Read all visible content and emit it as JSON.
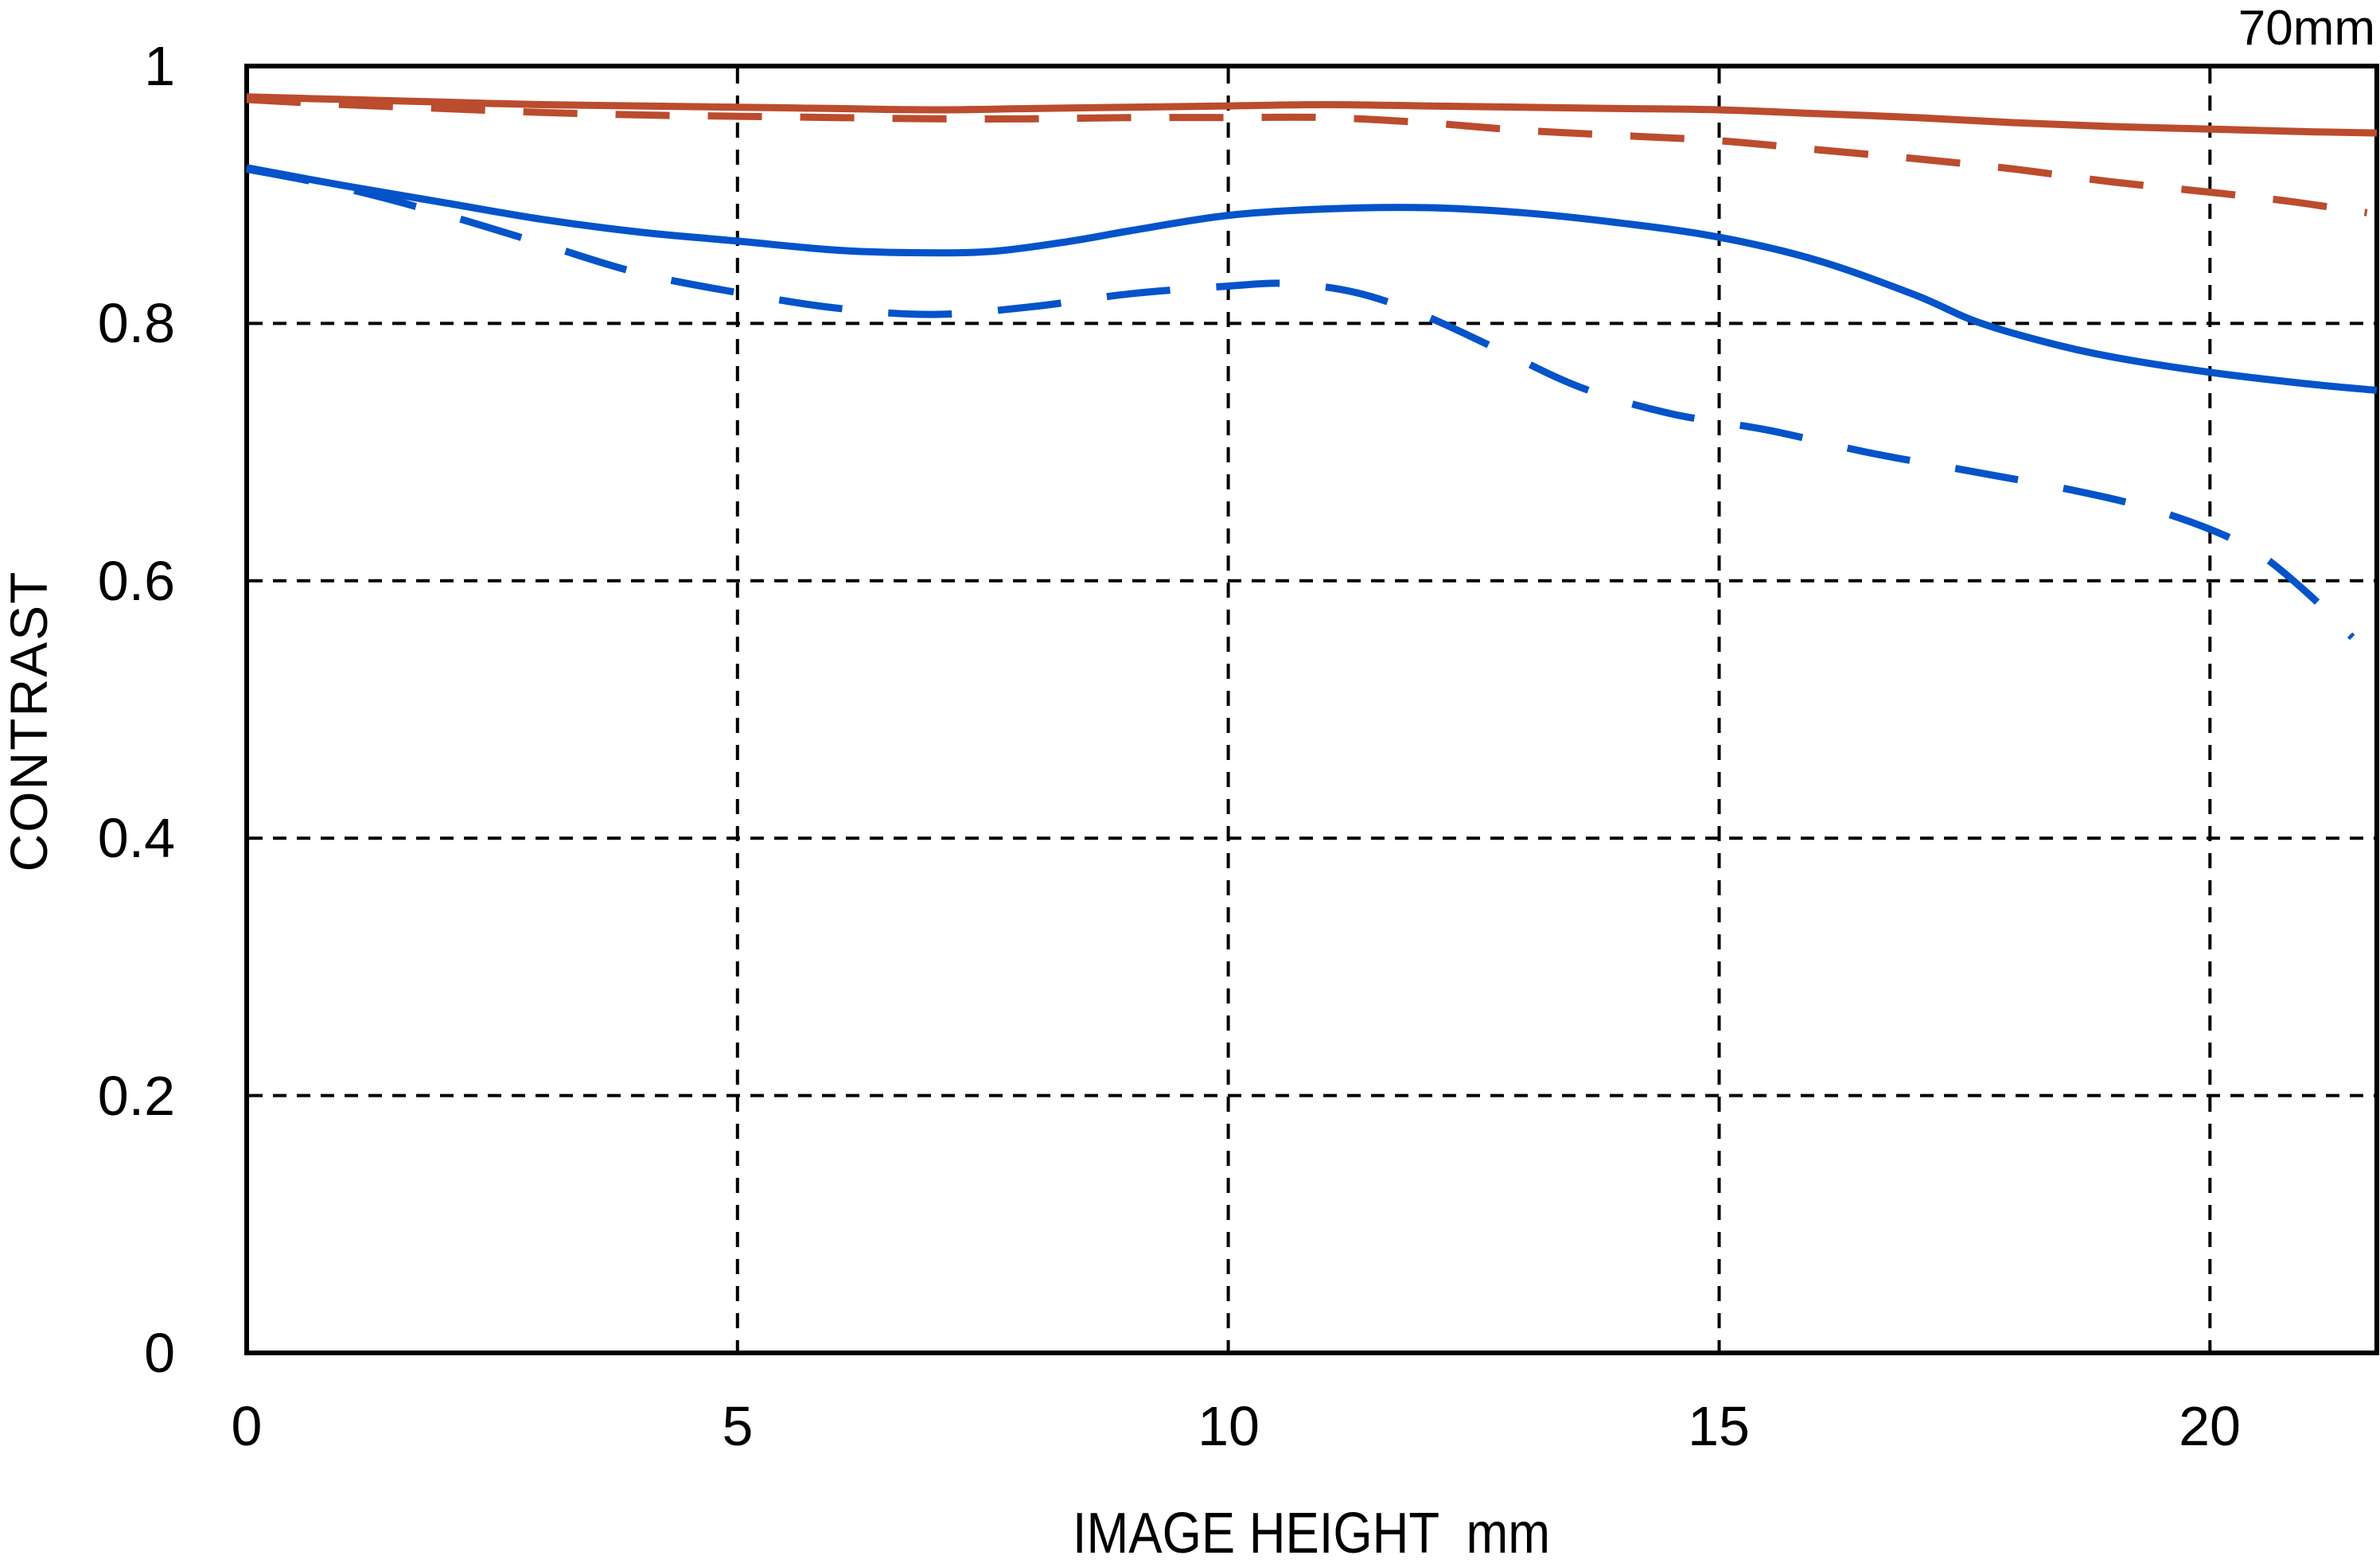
{
  "chart_data": {
    "type": "line",
    "title": "70mm",
    "xlabel": "IMAGE HEIGHT",
    "xunit": "mm",
    "ylabel": "CONTRAST",
    "xlim": [
      0,
      21.7
    ],
    "ylim": [
      0,
      1
    ],
    "x_tick_values": [
      0,
      5,
      10,
      15,
      20
    ],
    "x_tick_labels": [
      "0",
      "5",
      "10",
      "15",
      "20"
    ],
    "y_tick_values": [
      0,
      0.2,
      0.4,
      0.6,
      0.8,
      1
    ],
    "y_tick_labels": [
      "0",
      "0.2",
      "0.4",
      "0.6",
      "0.8",
      "1"
    ],
    "grid": {
      "on": true,
      "x_values": [
        5,
        10,
        15,
        20
      ],
      "y_values": [
        0.2,
        0.4,
        0.6,
        0.8
      ]
    },
    "legend": "none",
    "colors": {
      "red": "#BB4C2E",
      "blue": "#0453C9",
      "axis": "#000000"
    },
    "series": [
      {
        "name": "red-solid",
        "color": "red",
        "style": "solid",
        "points": [
          [
            0,
            0.976
          ],
          [
            1,
            0.974
          ],
          [
            2,
            0.972
          ],
          [
            3,
            0.97
          ],
          [
            4,
            0.969
          ],
          [
            5,
            0.968
          ],
          [
            6,
            0.967
          ],
          [
            7,
            0.966
          ],
          [
            8,
            0.967
          ],
          [
            9,
            0.968
          ],
          [
            10,
            0.969
          ],
          [
            11,
            0.97
          ],
          [
            12,
            0.969
          ],
          [
            13,
            0.968
          ],
          [
            14,
            0.967
          ],
          [
            15,
            0.966
          ],
          [
            16,
            0.963
          ],
          [
            17,
            0.96
          ],
          [
            18,
            0.956
          ],
          [
            19,
            0.953
          ],
          [
            20,
            0.951
          ],
          [
            21,
            0.949
          ],
          [
            21.7,
            0.948
          ]
        ]
      },
      {
        "name": "red-dashed",
        "color": "red",
        "style": "dashed",
        "points": [
          [
            0,
            0.974
          ],
          [
            1,
            0.97
          ],
          [
            2,
            0.967
          ],
          [
            3,
            0.964
          ],
          [
            4,
            0.962
          ],
          [
            5,
            0.961
          ],
          [
            6,
            0.96
          ],
          [
            7,
            0.959
          ],
          [
            8,
            0.959
          ],
          [
            9,
            0.96
          ],
          [
            10,
            0.96
          ],
          [
            11,
            0.96
          ],
          [
            12,
            0.956
          ],
          [
            13,
            0.95
          ],
          [
            14,
            0.946
          ],
          [
            15,
            0.942
          ],
          [
            16,
            0.935
          ],
          [
            17,
            0.928
          ],
          [
            18,
            0.92
          ],
          [
            19,
            0.91
          ],
          [
            20,
            0.902
          ],
          [
            20.8,
            0.895
          ],
          [
            21.6,
            0.886
          ]
        ]
      },
      {
        "name": "blue-solid",
        "color": "blue",
        "style": "solid",
        "points": [
          [
            0,
            0.921
          ],
          [
            1,
            0.907
          ],
          [
            2,
            0.894
          ],
          [
            3,
            0.881
          ],
          [
            4,
            0.871
          ],
          [
            5,
            0.864
          ],
          [
            6,
            0.857
          ],
          [
            6.8,
            0.855
          ],
          [
            7.6,
            0.856
          ],
          [
            8.4,
            0.864
          ],
          [
            9,
            0.872
          ],
          [
            10,
            0.884
          ],
          [
            11,
            0.889
          ],
          [
            12,
            0.89
          ],
          [
            13,
            0.886
          ],
          [
            14,
            0.878
          ],
          [
            15,
            0.867
          ],
          [
            16,
            0.849
          ],
          [
            17,
            0.822
          ],
          [
            17.6,
            0.802
          ],
          [
            18.3,
            0.786
          ],
          [
            19,
            0.774
          ],
          [
            20,
            0.762
          ],
          [
            21,
            0.753
          ],
          [
            21.7,
            0.748
          ]
        ]
      },
      {
        "name": "blue-dashed",
        "color": "blue",
        "style": "dashed",
        "points": [
          [
            0,
            0.92
          ],
          [
            1,
            0.905
          ],
          [
            2,
            0.885
          ],
          [
            3,
            0.862
          ],
          [
            4,
            0.839
          ],
          [
            5,
            0.824
          ],
          [
            6,
            0.812
          ],
          [
            7,
            0.807
          ],
          [
            8,
            0.813
          ],
          [
            9,
            0.823
          ],
          [
            10,
            0.829
          ],
          [
            10.6,
            0.831
          ],
          [
            11.3,
            0.824
          ],
          [
            12,
            0.806
          ],
          [
            12.8,
            0.778
          ],
          [
            13.6,
            0.75
          ],
          [
            14.5,
            0.73
          ],
          [
            15.5,
            0.717
          ],
          [
            16.5,
            0.7
          ],
          [
            17.5,
            0.686
          ],
          [
            18.5,
            0.672
          ],
          [
            19.3,
            0.658
          ],
          [
            20,
            0.64
          ],
          [
            20.5,
            0.621
          ],
          [
            21,
            0.59
          ],
          [
            21.45,
            0.556
          ]
        ]
      }
    ]
  }
}
